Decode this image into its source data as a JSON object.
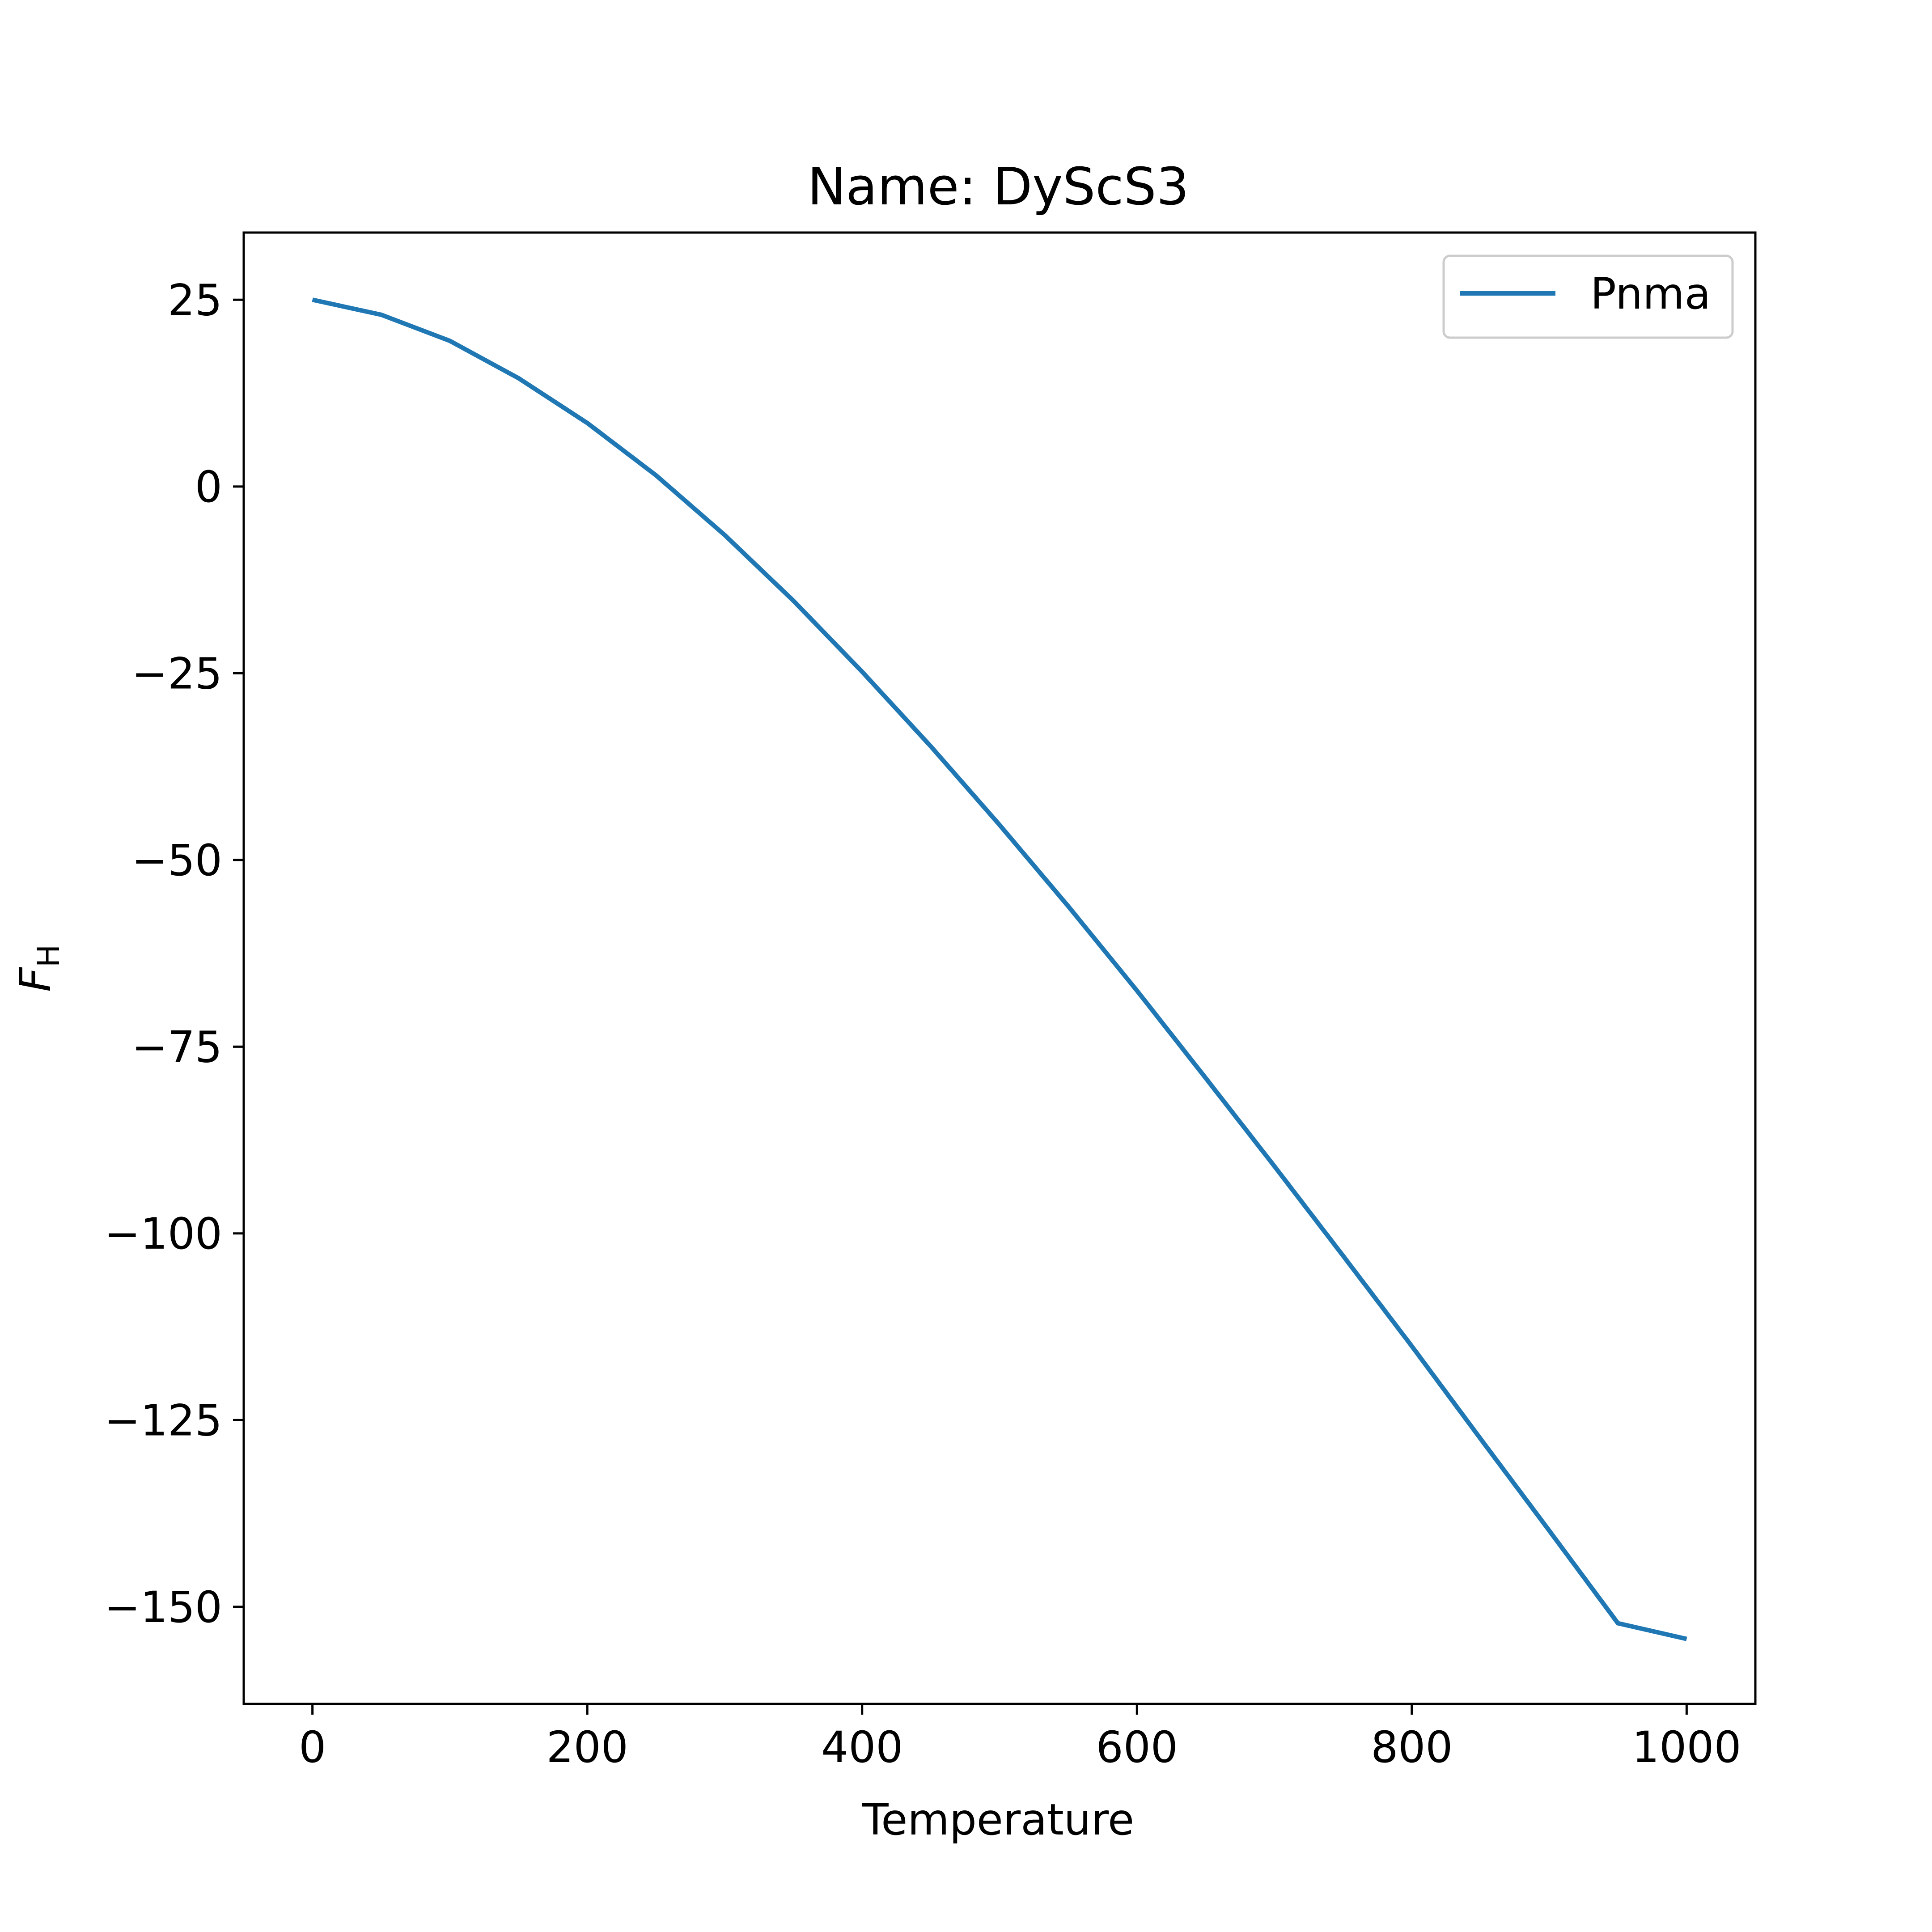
{
  "chart_data": {
    "type": "line",
    "title": "Name: DyScS3",
    "xlabel": "Temperature",
    "ylabel_main": "F",
    "ylabel_sub": "H",
    "xlim": [
      -50,
      1050
    ],
    "ylim": [
      -163,
      34
    ],
    "xticks": [
      0,
      200,
      400,
      600,
      800,
      1000
    ],
    "xtick_labels": [
      "0",
      "200",
      "400",
      "600",
      "800",
      "1000"
    ],
    "yticks": [
      25,
      0,
      -25,
      -50,
      -75,
      -100,
      -125,
      -150
    ],
    "ytick_labels": [
      "25",
      "0",
      "−25",
      "−50",
      "−75",
      "−100",
      "−125",
      "−150"
    ],
    "legend_position": "top-right",
    "grid": false,
    "series": [
      {
        "name": "Pnma",
        "color": "#1f77b4",
        "x": [
          0,
          50,
          100,
          150,
          200,
          250,
          300,
          350,
          400,
          450,
          500,
          550,
          600,
          650,
          700,
          750,
          800,
          850,
          900,
          950,
          1000
        ],
        "y": [
          25,
          23,
          19.5,
          14.5,
          8.5,
          1.5,
          -6.5,
          -15.3,
          -24.8,
          -34.8,
          -45.3,
          -56.2,
          -67.5,
          -79.2,
          -91,
          -103,
          -115.1,
          -127.5,
          -139.8,
          -152.2,
          -154.3
        ]
      }
    ]
  }
}
